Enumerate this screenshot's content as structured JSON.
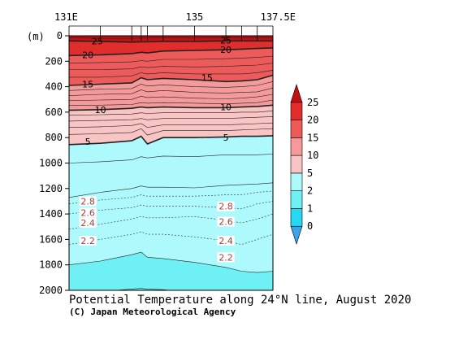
{
  "chart_data": {
    "type": "contour-section",
    "title": "Potential Temperature along 24°N line, August 2020",
    "credit": "(C) Japan Meteorological Agency",
    "x_axis": {
      "range": [
        131,
        137.5
      ],
      "tick_labels": [
        {
          "value": 131,
          "label": "131E"
        },
        {
          "value": 135,
          "label": "135"
        },
        {
          "value": 137.5,
          "label": "137.5E"
        }
      ],
      "stations": [
        131,
        132,
        133,
        133.3,
        133.5,
        134,
        135,
        136,
        136.5,
        137,
        137.5
      ]
    },
    "y_axis": {
      "unit_label": "(m)",
      "range": [
        0,
        2000
      ],
      "inverted": true,
      "ticks": [
        0,
        200,
        400,
        600,
        800,
        1000,
        1200,
        1400,
        1600,
        1800,
        2000
      ]
    },
    "colorbar": {
      "levels": [
        0,
        1,
        2,
        5,
        10,
        15,
        20,
        25
      ],
      "labels": [
        "0",
        "1",
        "2",
        "5",
        "10",
        "15",
        "20",
        "25"
      ],
      "colors": {
        "below_0": "#3aa3f0",
        "0_1": "#28d8ef",
        "1_2": "#6ff0f5",
        "2_5": "#aef9fb",
        "5_10": "#f9c4c4",
        "10_15": "#f59a9a",
        "15_20": "#ec5a5a",
        "20_25": "#e22d2d",
        "above_25": "#c41010"
      }
    },
    "contour_labels": [
      {
        "text": "25",
        "x": 131.9,
        "depth": 40
      },
      {
        "text": "25",
        "x": 136.0,
        "depth": 35
      },
      {
        "text": "20",
        "x": 131.6,
        "depth": 150
      },
      {
        "text": "20",
        "x": 136.0,
        "depth": 110
      },
      {
        "text": "15",
        "x": 131.6,
        "depth": 380
      },
      {
        "text": "15",
        "x": 135.4,
        "depth": 330
      },
      {
        "text": "10",
        "x": 132.0,
        "depth": 580
      },
      {
        "text": "10",
        "x": 136.0,
        "depth": 560
      },
      {
        "text": "5",
        "x": 131.6,
        "depth": 830
      },
      {
        "text": "5",
        "x": 136.0,
        "depth": 800
      },
      {
        "text": "2.8",
        "x": 131.6,
        "depth": 1300
      },
      {
        "text": "2.6",
        "x": 131.6,
        "depth": 1390
      },
      {
        "text": "2.4",
        "x": 131.6,
        "depth": 1470
      },
      {
        "text": "2.2",
        "x": 131.6,
        "depth": 1610
      },
      {
        "text": "2.8",
        "x": 136.0,
        "depth": 1340
      },
      {
        "text": "2.6",
        "x": 136.0,
        "depth": 1460
      },
      {
        "text": "2.4",
        "x": 136.0,
        "depth": 1610
      },
      {
        "text": "2.2",
        "x": 136.0,
        "depth": 1740
      }
    ],
    "isotherms": [
      {
        "value": 27,
        "depth": [
          15,
          20,
          20,
          18,
          18,
          15,
          18,
          15,
          15,
          15,
          15
        ]
      },
      {
        "value": 25,
        "depth": [
          40,
          45,
          50,
          48,
          48,
          45,
          45,
          40,
          40,
          40,
          40
        ]
      },
      {
        "value": 20,
        "depth": [
          155,
          150,
          140,
          130,
          135,
          120,
          115,
          110,
          105,
          100,
          95
        ]
      },
      {
        "value": 18,
        "depth": [
          215,
          210,
          205,
          195,
          200,
          185,
          185,
          180,
          175,
          170,
          160
        ]
      },
      {
        "value": 17,
        "depth": [
          265,
          265,
          260,
          245,
          250,
          240,
          245,
          240,
          235,
          230,
          215
        ]
      },
      {
        "value": 16,
        "depth": [
          325,
          325,
          315,
          290,
          300,
          290,
          300,
          300,
          300,
          290,
          270
        ]
      },
      {
        "value": 15,
        "depth": [
          390,
          380,
          370,
          330,
          345,
          335,
          345,
          360,
          355,
          345,
          310
        ]
      },
      {
        "value": 14,
        "depth": [
          430,
          420,
          415,
          380,
          395,
          385,
          400,
          405,
          400,
          390,
          360
        ]
      },
      {
        "value": 13,
        "depth": [
          470,
          460,
          455,
          425,
          440,
          430,
          445,
          450,
          445,
          440,
          410
        ]
      },
      {
        "value": 12,
        "depth": [
          510,
          505,
          500,
          475,
          485,
          480,
          490,
          495,
          490,
          480,
          460
        ]
      },
      {
        "value": 11,
        "depth": [
          545,
          545,
          540,
          525,
          530,
          525,
          530,
          535,
          530,
          525,
          505
        ]
      },
      {
        "value": 10,
        "depth": [
          585,
          580,
          570,
          560,
          565,
          560,
          565,
          565,
          560,
          555,
          545
        ]
      },
      {
        "value": 9,
        "depth": [
          625,
          620,
          615,
          605,
          610,
          605,
          605,
          605,
          600,
          600,
          590
        ]
      },
      {
        "value": 8,
        "depth": [
          670,
          665,
          660,
          650,
          660,
          650,
          650,
          650,
          645,
          640,
          635
        ]
      },
      {
        "value": 7,
        "depth": [
          720,
          715,
          705,
          690,
          720,
          700,
          700,
          700,
          695,
          690,
          685
        ]
      },
      {
        "value": 6,
        "depth": [
          775,
          770,
          760,
          730,
          780,
          745,
          745,
          745,
          740,
          735,
          730
        ]
      },
      {
        "value": 5,
        "depth": [
          855,
          845,
          825,
          790,
          850,
          800,
          800,
          795,
          790,
          790,
          785
        ]
      },
      {
        "value": 4,
        "depth": [
          1000,
          990,
          975,
          950,
          960,
          945,
          950,
          935,
          935,
          935,
          930
        ]
      },
      {
        "value": 3,
        "depth": [
          1270,
          1230,
          1200,
          1180,
          1190,
          1190,
          1195,
          1175,
          1170,
          1165,
          1155
        ]
      },
      {
        "value": 2.8,
        "depth": [
          1320,
          1290,
          1270,
          1250,
          1260,
          1260,
          1260,
          1250,
          1250,
          1230,
          1220
        ]
      },
      {
        "value": 2.6,
        "depth": [
          1400,
          1370,
          1350,
          1330,
          1340,
          1340,
          1340,
          1350,
          1360,
          1320,
          1300
        ]
      },
      {
        "value": 2.4,
        "depth": [
          1520,
          1480,
          1440,
          1420,
          1430,
          1430,
          1420,
          1450,
          1470,
          1440,
          1400
        ]
      },
      {
        "value": 2.2,
        "depth": [
          1640,
          1600,
          1560,
          1540,
          1560,
          1560,
          1580,
          1610,
          1640,
          1600,
          1560
        ]
      },
      {
        "value": 2,
        "depth": [
          1800,
          1770,
          1720,
          1700,
          1740,
          1750,
          1780,
          1820,
          1850,
          1860,
          1850
        ]
      },
      {
        "value": 1.8,
        "depth": [
          2030,
          2010,
          1990,
          1985,
          1990,
          1995,
          2020,
          2030,
          2030,
          2020,
          2020
        ]
      }
    ]
  }
}
